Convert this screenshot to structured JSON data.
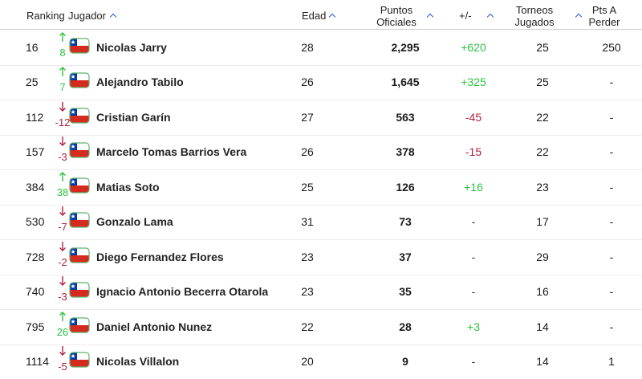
{
  "table": {
    "columns": [
      "Ranking",
      "Jugador",
      "Edad",
      "Puntos Oficiales",
      "+/-",
      "Torneos Jugados",
      "Pts A Perder"
    ],
    "rows": [
      {
        "rank": "16",
        "change": "8",
        "player": "Nicolas Jarry",
        "age": "28",
        "points": "2,295",
        "diff": "+620",
        "tournaments": "25",
        "to_lose": "250"
      },
      {
        "rank": "25",
        "change": "7",
        "player": "Alejandro Tabilo",
        "age": "26",
        "points": "1,645",
        "diff": "+325",
        "tournaments": "25",
        "to_lose": "-"
      },
      {
        "rank": "112",
        "change": "-12",
        "player": "Cristian Garín",
        "age": "27",
        "points": "563",
        "diff": "-45",
        "tournaments": "22",
        "to_lose": "-"
      },
      {
        "rank": "157",
        "change": "-3",
        "player": "Marcelo Tomas Barrios Vera",
        "age": "26",
        "points": "378",
        "diff": "-15",
        "tournaments": "22",
        "to_lose": "-"
      },
      {
        "rank": "384",
        "change": "38",
        "player": "Matias Soto",
        "age": "25",
        "points": "126",
        "diff": "+16",
        "tournaments": "23",
        "to_lose": "-"
      },
      {
        "rank": "530",
        "change": "-7",
        "player": "Gonzalo Lama",
        "age": "31",
        "points": "73",
        "diff": "-",
        "tournaments": "17",
        "to_lose": "-"
      },
      {
        "rank": "728",
        "change": "-2",
        "player": "Diego Fernandez Flores",
        "age": "23",
        "points": "37",
        "diff": "-",
        "tournaments": "29",
        "to_lose": "-"
      },
      {
        "rank": "740",
        "change": "-3",
        "player": "Ignacio Antonio Becerra Otarola",
        "age": "23",
        "points": "35",
        "diff": "-",
        "tournaments": "16",
        "to_lose": "-"
      },
      {
        "rank": "795",
        "change": "26",
        "player": "Daniel Antonio Nunez",
        "age": "22",
        "points": "28",
        "diff": "+3",
        "tournaments": "14",
        "to_lose": "-"
      },
      {
        "rank": "1114",
        "change": "-5",
        "player": "Nicolas Villalon",
        "age": "20",
        "points": "9",
        "diff": "-",
        "tournaments": "14",
        "to_lose": "1"
      }
    ]
  }
}
